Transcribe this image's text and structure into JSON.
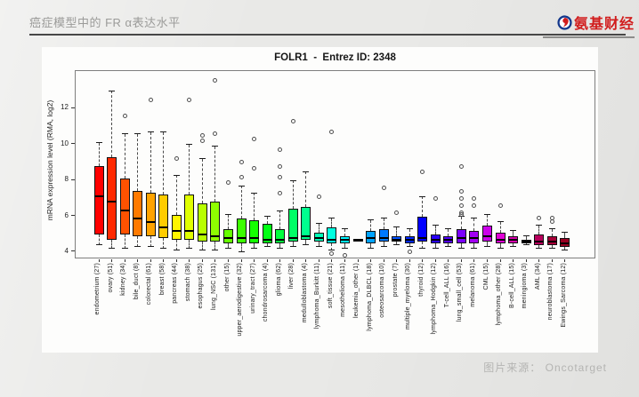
{
  "header": {
    "title": "癌症模型中的 FR α表达水平",
    "logo_text": "氨基财经"
  },
  "footer": {
    "credit": "图片来源： Oncotarget"
  },
  "chart_data": {
    "type": "boxplot",
    "title": "FOLR1  -  Entrez ID: 2348",
    "ylabel": "mRNA expression level (RMA, log2)",
    "yticks": [
      4,
      6,
      8,
      10,
      12
    ],
    "ylim": [
      3.6,
      14.1
    ],
    "grid": false,
    "legend": "none",
    "x_label_rotation": -90,
    "boxes": [
      {
        "label": "endometrium (27)",
        "low": 4.4,
        "q1": 5.0,
        "median": 7.1,
        "q3": 8.8,
        "high": 10.1,
        "outliers": [],
        "color": "#FF0000"
      },
      {
        "label": "ovary (51)",
        "low": 4.2,
        "q1": 4.7,
        "median": 6.8,
        "q3": 9.3,
        "high": 13.0,
        "outliers": [],
        "color": "#FF2900"
      },
      {
        "label": "kidney (34)",
        "low": 4.2,
        "q1": 5.0,
        "median": 6.3,
        "q3": 8.1,
        "high": 10.6,
        "outliers": [
          11.6
        ],
        "color": "#FF5200"
      },
      {
        "label": "bile_duct (8)",
        "low": 4.3,
        "q1": 4.9,
        "median": 5.9,
        "q3": 7.4,
        "high": 10.6,
        "outliers": [],
        "color": "#FF7A00"
      },
      {
        "label": "colorectal (61)",
        "low": 4.3,
        "q1": 4.9,
        "median": 5.7,
        "q3": 7.3,
        "high": 10.7,
        "outliers": [
          12.5
        ],
        "color": "#FFA300"
      },
      {
        "label": "breast (58)",
        "low": 4.2,
        "q1": 4.8,
        "median": 5.4,
        "q3": 7.2,
        "high": 10.7,
        "outliers": [],
        "color": "#FFCC00"
      },
      {
        "label": "pancreas (44)",
        "low": 4.1,
        "q1": 4.7,
        "median": 5.2,
        "q3": 6.1,
        "high": 8.3,
        "outliers": [
          9.2
        ],
        "color": "#FFF500"
      },
      {
        "label": "stomach (38)",
        "low": 4.2,
        "q1": 4.7,
        "median": 5.2,
        "q3": 7.2,
        "high": 10.0,
        "outliers": [
          12.5
        ],
        "color": "#E0FF00"
      },
      {
        "label": "esophagus (25)",
        "low": 4.1,
        "q1": 4.6,
        "median": 5.0,
        "q3": 6.7,
        "high": 9.2,
        "outliers": [
          10.5,
          10.2
        ],
        "color": "#B8FF00"
      },
      {
        "label": "lung_NSC (131)",
        "low": 4.1,
        "q1": 4.6,
        "median": 4.9,
        "q3": 6.8,
        "high": 9.9,
        "outliers": [
          13.6,
          10.6
        ],
        "color": "#8FFF00"
      },
      {
        "label": "other (15)",
        "low": 4.2,
        "q1": 4.5,
        "median": 4.8,
        "q3": 5.3,
        "high": 6.1,
        "outliers": [
          7.9
        ],
        "color": "#66FF00"
      },
      {
        "label": "upper_aerodigestive (32)",
        "low": 4.0,
        "q1": 4.5,
        "median": 4.8,
        "q3": 5.9,
        "high": 7.7,
        "outliers": [
          9.0,
          8.2
        ],
        "color": "#3DFF00"
      },
      {
        "label": "urinary_tract (27)",
        "low": 4.2,
        "q1": 4.5,
        "median": 4.8,
        "q3": 5.8,
        "high": 7.3,
        "outliers": [
          10.3,
          8.7
        ],
        "color": "#14FF00"
      },
      {
        "label": "chondrosarcoma (4)",
        "low": 4.3,
        "q1": 4.5,
        "median": 4.7,
        "q3": 5.6,
        "high": 6.0,
        "outliers": [],
        "color": "#00FF14"
      },
      {
        "label": "glioma (62)",
        "low": 4.2,
        "q1": 4.5,
        "median": 4.7,
        "q3": 5.3,
        "high": 6.3,
        "outliers": [
          9.7,
          8.8,
          8.2,
          7.3
        ],
        "color": "#00FF3D"
      },
      {
        "label": "liver (28)",
        "low": 4.3,
        "q1": 4.6,
        "median": 4.8,
        "q3": 6.4,
        "high": 8.0,
        "outliers": [
          11.3
        ],
        "color": "#00FF66"
      },
      {
        "label": "medulloblastoma (4)",
        "low": 4.4,
        "q1": 4.7,
        "median": 4.9,
        "q3": 6.5,
        "high": 8.5,
        "outliers": [],
        "color": "#00FF8F"
      },
      {
        "label": "lymphoma_Burkitt (11)",
        "low": 4.3,
        "q1": 4.6,
        "median": 4.8,
        "q3": 5.1,
        "high": 5.6,
        "outliers": [
          7.1
        ],
        "color": "#00FFB8"
      },
      {
        "label": "soft_tissue (21)",
        "low": 4.1,
        "q1": 4.5,
        "median": 4.7,
        "q3": 5.4,
        "high": 5.9,
        "outliers": [
          10.7,
          3.9
        ],
        "color": "#00FFE0"
      },
      {
        "label": "mesothelioma (11)",
        "low": 4.2,
        "q1": 4.5,
        "median": 4.7,
        "q3": 4.9,
        "high": 5.3,
        "outliers": [
          3.8
        ],
        "color": "#00F5FF"
      },
      {
        "label": "leukemia_other (1)",
        "low": 4.7,
        "q1": 4.7,
        "median": 4.7,
        "q3": 4.7,
        "high": 4.7,
        "outliers": [],
        "color": "#00CCFF"
      },
      {
        "label": "lymphoma_DLBCL (18)",
        "low": 4.2,
        "q1": 4.5,
        "median": 4.8,
        "q3": 5.2,
        "high": 5.8,
        "outliers": [],
        "color": "#00A3FF"
      },
      {
        "label": "osteosarcoma (10)",
        "low": 4.3,
        "q1": 4.6,
        "median": 4.8,
        "q3": 5.3,
        "high": 5.9,
        "outliers": [
          7.6
        ],
        "color": "#007AFF"
      },
      {
        "label": "prostate (7)",
        "low": 4.4,
        "q1": 4.6,
        "median": 4.7,
        "q3": 4.9,
        "high": 5.4,
        "outliers": [
          6.2
        ],
        "color": "#0052FF"
      },
      {
        "label": "multiple_myeloma (30)",
        "low": 4.3,
        "q1": 4.5,
        "median": 4.7,
        "q3": 4.9,
        "high": 5.3,
        "outliers": [
          4.0
        ],
        "color": "#0029FF"
      },
      {
        "label": "thyroid (12)",
        "low": 4.2,
        "q1": 4.6,
        "median": 4.8,
        "q3": 6.0,
        "high": 7.1,
        "outliers": [
          8.5
        ],
        "color": "#0000FF"
      },
      {
        "label": "lymphoma_Hodgkin (12)",
        "low": 4.2,
        "q1": 4.5,
        "median": 4.7,
        "q3": 5.0,
        "high": 5.5,
        "outliers": [
          7.0
        ],
        "color": "#2900FF"
      },
      {
        "label": "T-cell_ALL (16)",
        "low": 4.3,
        "q1": 4.5,
        "median": 4.7,
        "q3": 4.9,
        "high": 5.3,
        "outliers": [],
        "color": "#5200FF"
      },
      {
        "label": "lung_small_cell (53)",
        "low": 4.2,
        "q1": 4.5,
        "median": 4.8,
        "q3": 5.3,
        "high": 6.0,
        "outliers": [
          8.8,
          7.4,
          7.0,
          6.6,
          6.2,
          6.1
        ],
        "color": "#7A00FF"
      },
      {
        "label": "melanoma (61)",
        "low": 4.2,
        "q1": 4.5,
        "median": 4.8,
        "q3": 5.2,
        "high": 5.9,
        "outliers": [
          7.0,
          6.6
        ],
        "color": "#A300F5"
      },
      {
        "label": "CML (15)",
        "low": 4.3,
        "q1": 4.6,
        "median": 4.9,
        "q3": 5.5,
        "high": 6.1,
        "outliers": [],
        "color": "#CC00EB"
      },
      {
        "label": "lymphoma_other (28)",
        "low": 4.2,
        "q1": 4.5,
        "median": 4.7,
        "q3": 5.1,
        "high": 5.7,
        "outliers": [
          6.6
        ],
        "color": "#E000D6"
      },
      {
        "label": "B-cell_ALL (15)",
        "low": 4.3,
        "q1": 4.5,
        "median": 4.7,
        "q3": 4.9,
        "high": 5.2,
        "outliers": [],
        "color": "#D600AD"
      },
      {
        "label": "meningioma (3)",
        "low": 4.4,
        "q1": 4.5,
        "median": 4.6,
        "q3": 4.7,
        "high": 4.9,
        "outliers": [],
        "color": "#C70085"
      },
      {
        "label": "AML (34)",
        "low": 4.2,
        "q1": 4.4,
        "median": 4.6,
        "q3": 5.0,
        "high": 5.5,
        "outliers": [
          5.9
        ],
        "color": "#B8005C"
      },
      {
        "label": "neuroblastoma (17)",
        "low": 4.2,
        "q1": 4.4,
        "median": 4.6,
        "q3": 4.9,
        "high": 5.3,
        "outliers": [
          5.9,
          5.7
        ],
        "color": "#A80038"
      },
      {
        "label": "Ewings_Sarcoma (12)",
        "low": 4.1,
        "q1": 4.3,
        "median": 4.5,
        "q3": 4.8,
        "high": 5.1,
        "outliers": [],
        "color": "#990022"
      }
    ]
  }
}
